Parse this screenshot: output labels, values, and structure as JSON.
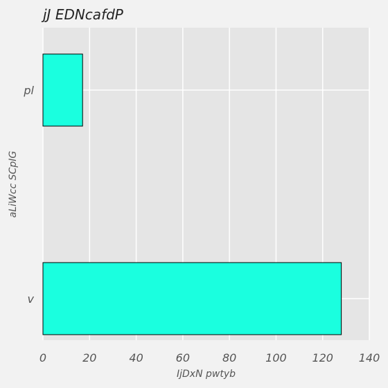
{
  "chart_data": {
    "type": "bar",
    "orientation": "horizontal",
    "title": "jJ EDNcafdP",
    "xlabel": "IjDxN pwtyb",
    "ylabel": "aLiWcc SCpIG",
    "categories": [
      "pl",
      "v"
    ],
    "values": [
      17,
      128
    ],
    "xlim": [
      0,
      140
    ],
    "xticks": [
      0,
      20,
      40,
      60,
      80,
      100,
      120,
      140
    ],
    "grid": true,
    "legend": "none",
    "colors": {
      "bar": "#1affdf",
      "bar_edge": "#000000",
      "plot_background": "#e5e5e5",
      "figure_background": "#f2f2f2",
      "grid": "#ffffff"
    }
  }
}
